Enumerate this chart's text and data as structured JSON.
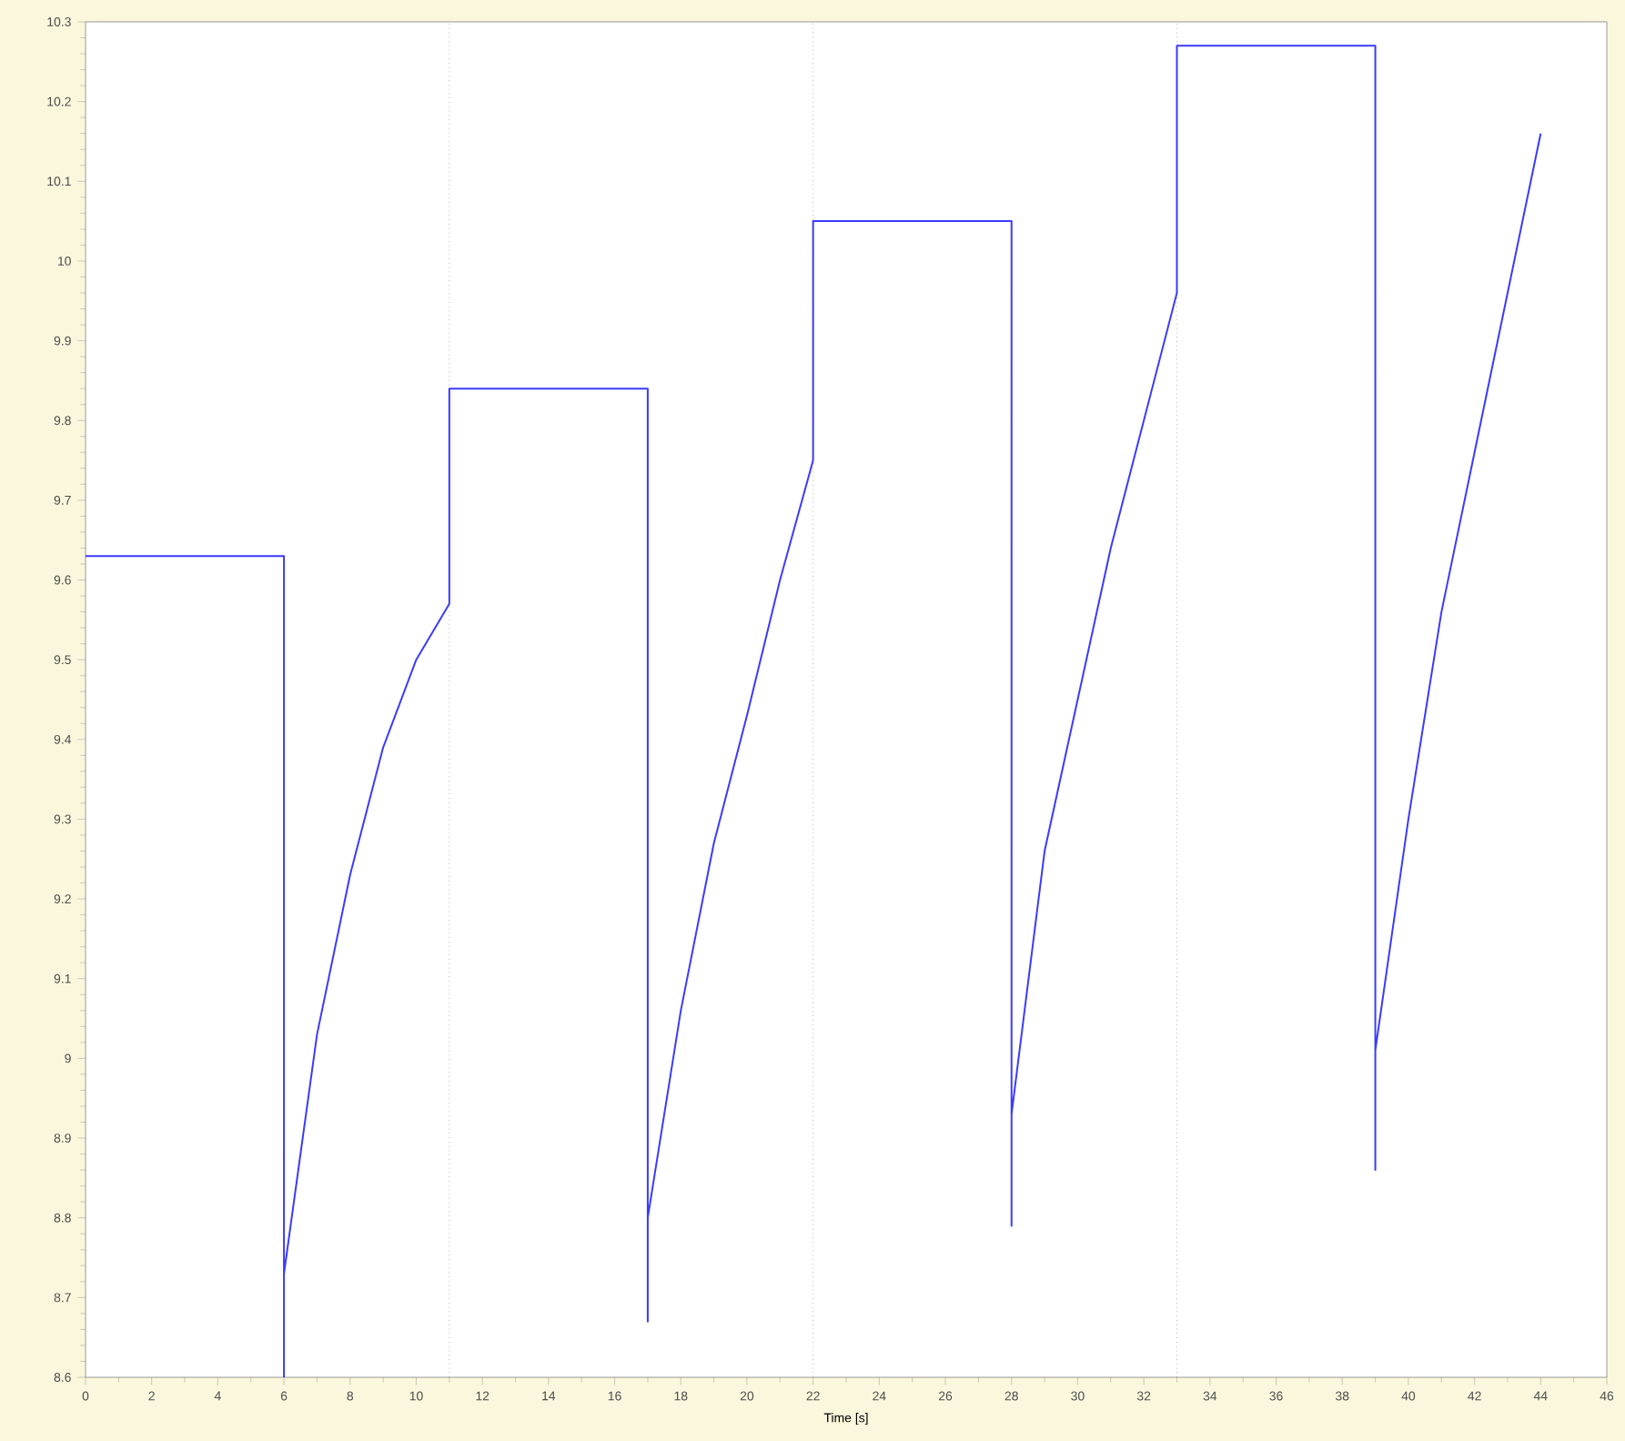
{
  "chart_data": {
    "type": "line",
    "xlabel": "Time [s]",
    "series": [
      {
        "color": "#3a3aff",
        "x": [
          0,
          6,
          6,
          6,
          7,
          8,
          9,
          10,
          11,
          11,
          17,
          17,
          17,
          18,
          19,
          20,
          21,
          22,
          22,
          28,
          28,
          28,
          29,
          30,
          31,
          32,
          33,
          33,
          39,
          39,
          39,
          40,
          41,
          42,
          43,
          44
        ],
        "values": [
          9.63,
          9.63,
          8.6,
          8.73,
          9.03,
          9.23,
          9.39,
          9.5,
          9.57,
          9.84,
          9.84,
          8.67,
          8.8,
          9.06,
          9.27,
          9.43,
          9.6,
          9.75,
          10.05,
          10.05,
          8.79,
          8.93,
          9.26,
          9.45,
          9.64,
          9.8,
          9.96,
          10.27,
          10.27,
          8.86,
          9.01,
          9.3,
          9.56,
          9.76,
          9.96,
          10.16
        ]
      }
    ],
    "xlim": [
      0,
      46
    ],
    "ylim": [
      8.6,
      10.3
    ],
    "xticks": [
      0,
      2,
      4,
      6,
      8,
      10,
      12,
      14,
      16,
      18,
      20,
      22,
      24,
      26,
      28,
      30,
      32,
      34,
      36,
      38,
      40,
      42,
      44,
      46
    ],
    "yticks": [
      8.6,
      8.7,
      8.8,
      8.9,
      9,
      9.1,
      9.2,
      9.3,
      9.4,
      9.5,
      9.6,
      9.7,
      9.8,
      9.9,
      10,
      10.1,
      10.2,
      10.3
    ],
    "ref_lines": [
      {
        "axis": "x",
        "value": 11,
        "color": "#888888",
        "line_style": "dotted"
      },
      {
        "axis": "x",
        "value": 22,
        "color": "#888888",
        "line_style": "dotted"
      },
      {
        "axis": "x",
        "value": 33,
        "color": "#888888",
        "line_style": "dotted"
      }
    ],
    "grid": false,
    "legend": false,
    "marker": "none",
    "line_style": "solid"
  }
}
